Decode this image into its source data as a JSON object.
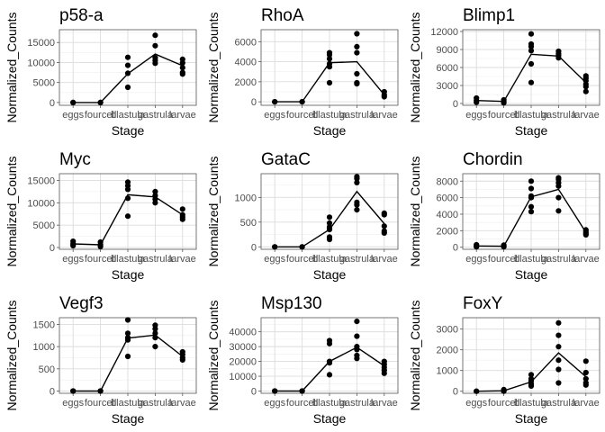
{
  "chart_data": [
    {
      "type": "scatter",
      "title": "p58-a",
      "xlabel": "Stage",
      "ylabel": "Normalized_Counts",
      "categories": [
        "eggs",
        "fourcell",
        "blastula",
        "gastrula",
        "larvae"
      ],
      "ylim": [
        -700,
        18200
      ],
      "yticks": [
        0,
        5000,
        10000,
        15000
      ],
      "yticklabels": [
        "0",
        "5000",
        "10000",
        "15000"
      ],
      "points": [
        [
          0,
          0
        ],
        [
          0,
          0
        ],
        [
          1,
          0
        ],
        [
          1,
          0
        ],
        [
          2,
          11300
        ],
        [
          2,
          9300
        ],
        [
          2,
          7300
        ],
        [
          2,
          3800
        ],
        [
          3,
          16800
        ],
        [
          3,
          14200
        ],
        [
          3,
          11200
        ],
        [
          3,
          10500
        ],
        [
          3,
          9800
        ],
        [
          4,
          10800
        ],
        [
          4,
          9900
        ],
        [
          4,
          8700
        ],
        [
          4,
          7500
        ],
        [
          4,
          7100
        ]
      ],
      "line": [
        0,
        0,
        7200,
        12100,
        9200
      ]
    },
    {
      "type": "scatter",
      "title": "RhoA",
      "xlabel": "Stage",
      "ylabel": "Normalized_Counts",
      "categories": [
        "eggs",
        "fourcell",
        "blastula",
        "gastrula",
        "larvae"
      ],
      "ylim": [
        -350,
        7200
      ],
      "yticks": [
        0,
        2000,
        4000,
        6000
      ],
      "yticklabels": [
        "0",
        "2000",
        "4000",
        "6000"
      ],
      "points": [
        [
          0,
          0
        ],
        [
          0,
          0
        ],
        [
          1,
          0
        ],
        [
          1,
          0
        ],
        [
          2,
          4900
        ],
        [
          2,
          4700
        ],
        [
          2,
          4300
        ],
        [
          2,
          3800
        ],
        [
          2,
          3500
        ],
        [
          2,
          1900
        ],
        [
          3,
          6800
        ],
        [
          3,
          5500
        ],
        [
          3,
          4900
        ],
        [
          3,
          2800
        ],
        [
          3,
          1900
        ],
        [
          3,
          1800
        ],
        [
          4,
          1000
        ],
        [
          4,
          700
        ],
        [
          4,
          500
        ]
      ],
      "line": [
        0,
        0,
        3900,
        4000,
        700
      ]
    },
    {
      "type": "scatter",
      "title": "Blimp1",
      "xlabel": "Stage",
      "ylabel": "Normalized_Counts",
      "categories": [
        "eggs",
        "fourcell",
        "blastula",
        "gastrula",
        "larvae"
      ],
      "ylim": [
        -300,
        12300
      ],
      "yticks": [
        0,
        3000,
        6000,
        9000,
        12000
      ],
      "yticklabels": [
        "0",
        "3000",
        "6000",
        "9000",
        "12000"
      ],
      "points": [
        [
          0,
          900
        ],
        [
          0,
          500
        ],
        [
          0,
          200
        ],
        [
          1,
          600
        ],
        [
          1,
          300
        ],
        [
          1,
          100
        ],
        [
          2,
          11600
        ],
        [
          2,
          9900
        ],
        [
          2,
          9500
        ],
        [
          2,
          8800
        ],
        [
          2,
          6600
        ],
        [
          2,
          3500
        ],
        [
          3,
          8700
        ],
        [
          3,
          8300
        ],
        [
          3,
          8000
        ],
        [
          3,
          7600
        ],
        [
          4,
          4600
        ],
        [
          4,
          4200
        ],
        [
          4,
          3800
        ],
        [
          4,
          3200
        ],
        [
          4,
          2800
        ],
        [
          4,
          2000
        ]
      ],
      "line": [
        500,
        350,
        8200,
        7900,
        3500
      ]
    },
    {
      "type": "scatter",
      "title": "Myc",
      "xlabel": "Stage",
      "ylabel": "Normalized_Counts",
      "categories": [
        "eggs",
        "fourcell",
        "blastula",
        "gastrula",
        "larvae"
      ],
      "ylim": [
        -400,
        16500
      ],
      "yticks": [
        0,
        5000,
        10000,
        15000
      ],
      "yticklabels": [
        "0",
        "5000",
        "10000",
        "15000"
      ],
      "points": [
        [
          0,
          1400
        ],
        [
          0,
          800
        ],
        [
          0,
          400
        ],
        [
          1,
          1200
        ],
        [
          1,
          600
        ],
        [
          1,
          200
        ],
        [
          2,
          14600
        ],
        [
          2,
          13800
        ],
        [
          2,
          13000
        ],
        [
          2,
          11000
        ],
        [
          2,
          7000
        ],
        [
          3,
          12500
        ],
        [
          3,
          11600
        ],
        [
          3,
          10800
        ],
        [
          3,
          10000
        ],
        [
          4,
          8600
        ],
        [
          4,
          7300
        ],
        [
          4,
          6800
        ],
        [
          4,
          6300
        ]
      ],
      "line": [
        800,
        600,
        11800,
        11300,
        7300
      ]
    },
    {
      "type": "scatter",
      "title": "GataC",
      "xlabel": "Stage",
      "ylabel": "Normalized_Counts",
      "categories": [
        "eggs",
        "fourcell",
        "blastula",
        "gastrula",
        "larvae"
      ],
      "ylim": [
        -50,
        1480
      ],
      "yticks": [
        0,
        500,
        1000
      ],
      "yticklabels": [
        "0",
        "500",
        "1000"
      ],
      "points": [
        [
          0,
          0
        ],
        [
          0,
          0
        ],
        [
          1,
          0
        ],
        [
          1,
          0
        ],
        [
          2,
          600
        ],
        [
          2,
          480
        ],
        [
          2,
          400
        ],
        [
          2,
          350
        ],
        [
          2,
          200
        ],
        [
          2,
          150
        ],
        [
          3,
          1420
        ],
        [
          3,
          1380
        ],
        [
          3,
          1300
        ],
        [
          3,
          900
        ],
        [
          3,
          850
        ],
        [
          3,
          750
        ],
        [
          4,
          680
        ],
        [
          4,
          650
        ],
        [
          4,
          420
        ],
        [
          4,
          320
        ],
        [
          4,
          280
        ]
      ],
      "line": [
        0,
        0,
        350,
        1120,
        470
      ]
    },
    {
      "type": "scatter",
      "title": "Chordin",
      "xlabel": "Stage",
      "ylabel": "Normalized_Counts",
      "categories": [
        "eggs",
        "fourcell",
        "blastula",
        "gastrula",
        "larvae"
      ],
      "ylim": [
        -250,
        8900
      ],
      "yticks": [
        0,
        2000,
        4000,
        6000,
        8000
      ],
      "yticklabels": [
        "0",
        "2000",
        "4000",
        "6000",
        "8000"
      ],
      "points": [
        [
          0,
          300
        ],
        [
          0,
          150
        ],
        [
          0,
          50
        ],
        [
          1,
          250
        ],
        [
          1,
          100
        ],
        [
          1,
          50
        ],
        [
          2,
          8000
        ],
        [
          2,
          7100
        ],
        [
          2,
          6200
        ],
        [
          2,
          6000
        ],
        [
          2,
          4900
        ],
        [
          2,
          4300
        ],
        [
          3,
          8400
        ],
        [
          3,
          8200
        ],
        [
          3,
          7800
        ],
        [
          3,
          7400
        ],
        [
          3,
          6000
        ],
        [
          3,
          4400
        ],
        [
          4,
          2100
        ],
        [
          4,
          1900
        ],
        [
          4,
          1700
        ],
        [
          4,
          1500
        ]
      ],
      "line": [
        150,
        120,
        6100,
        7000,
        1800
      ]
    },
    {
      "type": "scatter",
      "title": "Vegf3",
      "xlabel": "Stage",
      "ylabel": "Normalized_Counts",
      "categories": [
        "eggs",
        "fourcell",
        "blastula",
        "gastrula",
        "larvae"
      ],
      "ylim": [
        -50,
        1650
      ],
      "yticks": [
        0,
        500,
        1000,
        1500
      ],
      "yticklabels": [
        "0",
        "500",
        "1000",
        "1500"
      ],
      "points": [
        [
          0,
          0
        ],
        [
          0,
          0
        ],
        [
          1,
          0
        ],
        [
          1,
          0
        ],
        [
          2,
          1600
        ],
        [
          2,
          1300
        ],
        [
          2,
          1200
        ],
        [
          2,
          1150
        ],
        [
          2,
          780
        ],
        [
          3,
          1480
        ],
        [
          3,
          1400
        ],
        [
          3,
          1300
        ],
        [
          3,
          1200
        ],
        [
          3,
          1000
        ],
        [
          4,
          880
        ],
        [
          4,
          820
        ],
        [
          4,
          750
        ],
        [
          4,
          700
        ]
      ],
      "line": [
        0,
        0,
        1190,
        1260,
        780
      ]
    },
    {
      "type": "scatter",
      "title": "Msp130",
      "xlabel": "Stage",
      "ylabel": "Normalized_Counts",
      "categories": [
        "eggs",
        "fourcell",
        "blastula",
        "gastrula",
        "larvae"
      ],
      "ylim": [
        -1500,
        49500
      ],
      "yticks": [
        0,
        10000,
        20000,
        30000,
        40000
      ],
      "yticklabels": [
        "0",
        "10000",
        "20000",
        "30000",
        "40000"
      ],
      "points": [
        [
          0,
          0
        ],
        [
          0,
          0
        ],
        [
          1,
          0
        ],
        [
          1,
          0
        ],
        [
          2,
          34000
        ],
        [
          2,
          32000
        ],
        [
          2,
          20000
        ],
        [
          2,
          19000
        ],
        [
          2,
          11000
        ],
        [
          3,
          47000
        ],
        [
          3,
          37000
        ],
        [
          3,
          30000
        ],
        [
          3,
          28000
        ],
        [
          3,
          24000
        ],
        [
          3,
          22000
        ],
        [
          4,
          20000
        ],
        [
          4,
          18000
        ],
        [
          4,
          16000
        ],
        [
          4,
          14000
        ],
        [
          4,
          12000
        ]
      ],
      "line": [
        0,
        0,
        20000,
        29500,
        17000
      ]
    },
    {
      "type": "scatter",
      "title": "FoxY",
      "xlabel": "Stage",
      "ylabel": "Normalized_Counts",
      "categories": [
        "eggs",
        "fourcell",
        "blastula",
        "gastrula",
        "larvae"
      ],
      "ylim": [
        -100,
        3550
      ],
      "yticks": [
        0,
        1000,
        2000,
        3000
      ],
      "yticklabels": [
        "0",
        "1000",
        "2000",
        "3000"
      ],
      "points": [
        [
          0,
          0
        ],
        [
          0,
          0
        ],
        [
          1,
          80
        ],
        [
          1,
          20
        ],
        [
          1,
          0
        ],
        [
          2,
          800
        ],
        [
          2,
          600
        ],
        [
          2,
          500
        ],
        [
          2,
          350
        ],
        [
          2,
          250
        ],
        [
          3,
          3300
        ],
        [
          3,
          2700
        ],
        [
          3,
          2150
        ],
        [
          3,
          1500
        ],
        [
          3,
          1050
        ],
        [
          3,
          400
        ],
        [
          4,
          1450
        ],
        [
          4,
          900
        ],
        [
          4,
          600
        ],
        [
          4,
          400
        ],
        [
          4,
          300
        ]
      ],
      "line": [
        0,
        20,
        450,
        1850,
        700
      ]
    }
  ]
}
